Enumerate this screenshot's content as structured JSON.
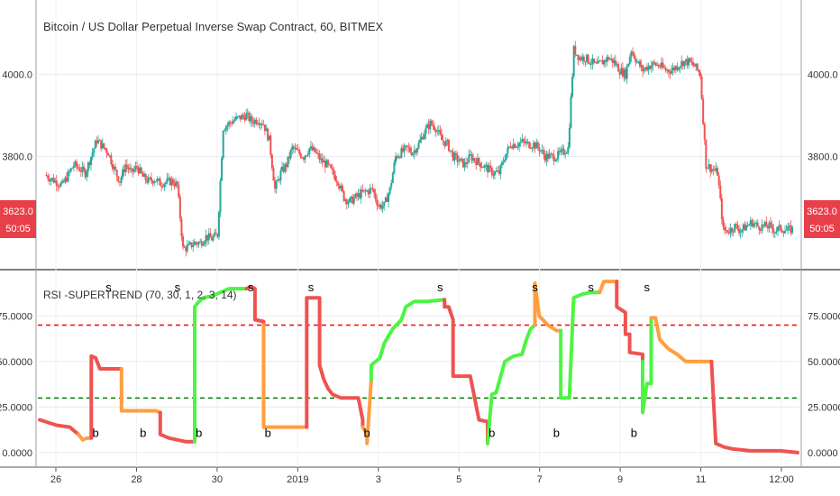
{
  "chart_data": [
    {
      "type": "candlestick",
      "title": "Bitcoin / US Dollar Perpetual Inverse Swap Contract, 60, BITMEX",
      "y_ticks": [
        3800,
        4000
      ],
      "y_tick_labels": [
        "3800.0",
        "4000.0"
      ],
      "ylim": [
        3540,
        4150
      ],
      "last_price": "3623.0",
      "countdown": "50:05",
      "up_color": "#26a69a",
      "down_color": "#ef5350",
      "close_path": [
        [
          0,
          3755
        ],
        [
          3,
          3730
        ],
        [
          5,
          3780
        ],
        [
          7,
          3760
        ],
        [
          9,
          3840
        ],
        [
          11,
          3810
        ],
        [
          12,
          3770
        ],
        [
          13,
          3740
        ],
        [
          14,
          3780
        ],
        [
          15,
          3760
        ],
        [
          16,
          3775
        ],
        [
          17,
          3750
        ],
        [
          18,
          3740
        ],
        [
          19,
          3745
        ],
        [
          20,
          3735
        ],
        [
          22,
          3740
        ],
        [
          23,
          3730
        ],
        [
          24,
          3575
        ],
        [
          25,
          3580
        ],
        [
          26,
          3590
        ],
        [
          27,
          3590
        ],
        [
          28,
          3605
        ],
        [
          29,
          3600
        ],
        [
          30,
          3610
        ],
        [
          31,
          3870
        ],
        [
          32,
          3880
        ],
        [
          33,
          3890
        ],
        [
          34,
          3895
        ],
        [
          35,
          3900
        ],
        [
          36,
          3885
        ],
        [
          37,
          3890
        ],
        [
          38,
          3880
        ],
        [
          39,
          3840
        ],
        [
          40,
          3720
        ],
        [
          41,
          3760
        ],
        [
          42,
          3780
        ],
        [
          43,
          3820
        ],
        [
          44,
          3810
        ],
        [
          45,
          3800
        ],
        [
          46,
          3820
        ],
        [
          47,
          3810
        ],
        [
          48,
          3790
        ],
        [
          49,
          3780
        ],
        [
          50,
          3760
        ],
        [
          51,
          3740
        ],
        [
          52,
          3700
        ],
        [
          53,
          3690
        ],
        [
          54,
          3700
        ],
        [
          55,
          3710
        ],
        [
          56,
          3715
        ],
        [
          57,
          3720
        ],
        [
          58,
          3680
        ],
        [
          59,
          3680
        ],
        [
          60,
          3720
        ],
        [
          61,
          3800
        ],
        [
          62,
          3810
        ],
        [
          63,
          3820
        ],
        [
          64,
          3810
        ],
        [
          65,
          3830
        ],
        [
          66,
          3860
        ],
        [
          67,
          3880
        ],
        [
          68,
          3870
        ],
        [
          69,
          3840
        ],
        [
          70,
          3830
        ],
        [
          71,
          3800
        ],
        [
          72,
          3790
        ],
        [
          73,
          3780
        ],
        [
          74,
          3800
        ],
        [
          75,
          3790
        ],
        [
          76,
          3780
        ],
        [
          77,
          3770
        ],
        [
          78,
          3760
        ],
        [
          79,
          3760
        ],
        [
          80,
          3800
        ],
        [
          81,
          3830
        ],
        [
          82,
          3830
        ],
        [
          83,
          3835
        ],
        [
          84,
          3830
        ],
        [
          85,
          3830
        ],
        [
          86,
          3820
        ],
        [
          87,
          3800
        ],
        [
          88,
          3800
        ],
        [
          89,
          3800
        ],
        [
          90,
          3810
        ],
        [
          91,
          3820
        ],
        [
          92,
          4060
        ],
        [
          93,
          4040
        ],
        [
          94,
          4040
        ],
        [
          95,
          4030
        ],
        [
          96,
          4020
        ],
        [
          97,
          4030
        ],
        [
          98,
          4040
        ],
        [
          99,
          4030
        ],
        [
          100,
          4010
        ],
        [
          101,
          4000
        ],
        [
          102,
          4060
        ],
        [
          103,
          4030
        ],
        [
          104,
          4010
        ],
        [
          105,
          4020
        ],
        [
          106,
          4025
        ],
        [
          107,
          4020
        ],
        [
          108,
          4010
        ],
        [
          109,
          4010
        ],
        [
          110,
          4020
        ],
        [
          111,
          4030
        ],
        [
          112,
          4030
        ],
        [
          113,
          4020
        ],
        [
          114,
          4000
        ],
        [
          115,
          3780
        ],
        [
          116,
          3770
        ],
        [
          117,
          3760
        ],
        [
          118,
          3620
        ],
        [
          119,
          3620
        ],
        [
          120,
          3630
        ],
        [
          121,
          3620
        ],
        [
          122,
          3630
        ],
        [
          123,
          3640
        ],
        [
          124,
          3630
        ],
        [
          125,
          3630
        ],
        [
          126,
          3630
        ],
        [
          127,
          3620
        ],
        [
          128,
          3625
        ],
        [
          129,
          3620
        ],
        [
          130,
          3623
        ]
      ],
      "close_path_x_unit": "hourly bar index"
    },
    {
      "type": "line",
      "title": "RSI -SUPERTREND (70, 30, 1, 2, 3, 14)",
      "y_ticks": [
        0,
        25,
        50,
        75
      ],
      "y_tick_labels": [
        "0.0000",
        "25.0000",
        "50.0000",
        "75.0000"
      ],
      "ylim": [
        -5,
        97
      ],
      "upper_level": 70,
      "lower_level": 30,
      "upper_level_color": "#ff0000",
      "lower_level_color": "#008000",
      "segments": [
        {
          "color": "#ef5350",
          "points": [
            [
              0,
              18
            ],
            [
              4,
              15
            ],
            [
              7,
              14
            ],
            [
              9,
              10
            ]
          ]
        },
        {
          "color": "#ff9e40",
          "points": [
            [
              9,
              10
            ],
            [
              10,
              7
            ],
            [
              11,
              8
            ],
            [
              12,
              8
            ]
          ]
        },
        {
          "color": "#ef5350",
          "points": [
            [
              12,
              8
            ],
            [
              12,
              53
            ],
            [
              13,
              52
            ],
            [
              14,
              46
            ],
            [
              16,
              46
            ],
            [
              17,
              46
            ],
            [
              18,
              46
            ],
            [
              19,
              46
            ]
          ]
        },
        {
          "color": "#ff9e40",
          "points": [
            [
              19,
              46
            ],
            [
              19,
              23
            ],
            [
              22,
              23
            ],
            [
              25,
              23
            ],
            [
              27,
              23
            ],
            [
              28,
              22
            ]
          ]
        },
        {
          "color": "#ef5350",
          "points": [
            [
              28,
              22
            ],
            [
              28,
              10
            ],
            [
              30,
              8
            ],
            [
              32,
              7
            ],
            [
              34,
              6
            ],
            [
              36,
              6
            ]
          ]
        },
        {
          "color": "#4cf542",
          "points": [
            [
              36,
              6
            ],
            [
              36,
              80
            ],
            [
              37,
              83
            ],
            [
              38,
              85
            ],
            [
              40,
              86
            ],
            [
              42,
              88
            ],
            [
              44,
              90
            ],
            [
              48,
              90
            ]
          ]
        },
        {
          "color": "#ef5350",
          "points": [
            [
              48,
              90
            ],
            [
              49,
              91
            ],
            [
              50,
              90
            ],
            [
              50,
              73
            ],
            [
              52,
              72
            ],
            [
              52,
              70
            ]
          ]
        },
        {
          "color": "#ff9e40",
          "points": [
            [
              52,
              70
            ],
            [
              52,
              14
            ],
            [
              55,
              14
            ],
            [
              58,
              14
            ],
            [
              62,
              14
            ]
          ]
        },
        {
          "color": "#ef5350",
          "points": [
            [
              62,
              14
            ],
            [
              62,
              85
            ],
            [
              64,
              85
            ],
            [
              65,
              85
            ],
            [
              65,
              48
            ],
            [
              66,
              40
            ],
            [
              67,
              35
            ],
            [
              68,
              32
            ],
            [
              70,
              30
            ],
            [
              72,
              30
            ],
            [
              74,
              30
            ],
            [
              75,
              18
            ],
            [
              75,
              14
            ]
          ]
        },
        {
          "color": "#ff9e40",
          "points": [
            [
              75,
              14
            ],
            [
              76,
              10
            ],
            [
              76,
              5
            ],
            [
              77,
              40
            ]
          ]
        },
        {
          "color": "#4cf542",
          "points": [
            [
              77,
              40
            ],
            [
              77,
              48
            ],
            [
              79,
              52
            ],
            [
              80,
              60
            ],
            [
              82,
              68
            ],
            [
              84,
              73
            ],
            [
              85,
              80
            ],
            [
              87,
              83
            ],
            [
              90,
              83
            ],
            [
              94,
              84
            ]
          ]
        },
        {
          "color": "#ef5350",
          "points": [
            [
              94,
              84
            ],
            [
              94,
              80
            ],
            [
              95,
              80
            ],
            [
              96,
              73
            ],
            [
              96,
              42
            ],
            [
              98,
              42
            ],
            [
              100,
              42
            ],
            [
              101,
              30
            ],
            [
              102,
              18
            ],
            [
              104,
              17
            ],
            [
              104,
              5
            ]
          ]
        },
        {
          "color": "#4cf542",
          "points": [
            [
              104,
              5
            ],
            [
              105,
              32
            ],
            [
              106,
              33
            ],
            [
              108,
              50
            ],
            [
              110,
              53
            ],
            [
              112,
              54
            ],
            [
              113,
              62
            ],
            [
              114,
              68
            ],
            [
              115,
              70
            ]
          ]
        },
        {
          "color": "#ff9e40",
          "points": [
            [
              115,
              70
            ],
            [
              115,
              93
            ],
            [
              116,
              75
            ],
            [
              118,
              70
            ],
            [
              120,
              67
            ],
            [
              121,
              67
            ]
          ]
        },
        {
          "color": "#4cf542",
          "points": [
            [
              121,
              67
            ],
            [
              121,
              30
            ],
            [
              123,
              30
            ],
            [
              124,
              85
            ],
            [
              126,
              87
            ],
            [
              128,
              88
            ],
            [
              130,
              88
            ]
          ]
        },
        {
          "color": "#ff9e40",
          "points": [
            [
              130,
              88
            ],
            [
              131,
              94
            ],
            [
              134,
              94
            ]
          ]
        },
        {
          "color": "#ef5350",
          "points": [
            [
              134,
              94
            ],
            [
              134,
              80
            ],
            [
              136,
              77
            ],
            [
              136,
              65
            ],
            [
              137,
              65
            ],
            [
              137,
              55
            ],
            [
              140,
              54
            ],
            [
              140,
              50
            ]
          ]
        },
        {
          "color": "#4cf542",
          "points": [
            [
              140,
              50
            ],
            [
              140,
              22
            ],
            [
              141,
              38
            ],
            [
              142,
              38
            ],
            [
              142,
              74
            ]
          ]
        },
        {
          "color": "#ff9e40",
          "points": [
            [
              142,
              74
            ],
            [
              143,
              74
            ],
            [
              144,
              62
            ],
            [
              146,
              57
            ],
            [
              148,
              54
            ],
            [
              150,
              50
            ],
            [
              152,
              50
            ],
            [
              156,
              50
            ]
          ]
        },
        {
          "color": "#ef5350",
          "points": [
            [
              156,
              50
            ],
            [
              157,
              5
            ],
            [
              159,
              3
            ],
            [
              161,
              2
            ],
            [
              165,
              1
            ],
            [
              172,
              1
            ],
            [
              176,
              0
            ]
          ]
        }
      ],
      "segments_x_unit": "bar index"
    }
  ],
  "signals": [
    {
      "text": "b",
      "at": [
        13,
        11
      ]
    },
    {
      "text": "s",
      "at": [
        16,
        91
      ]
    },
    {
      "text": "b",
      "at": [
        24,
        11
      ]
    },
    {
      "text": "s",
      "at": [
        32,
        91
      ]
    },
    {
      "text": "b",
      "at": [
        37,
        11
      ]
    },
    {
      "text": "s",
      "at": [
        49,
        91
      ]
    },
    {
      "text": "b",
      "at": [
        53,
        11
      ]
    },
    {
      "text": "s",
      "at": [
        63,
        91
      ]
    },
    {
      "text": "b",
      "at": [
        76,
        11
      ]
    },
    {
      "text": "s",
      "at": [
        93,
        91
      ]
    },
    {
      "text": "b",
      "at": [
        105,
        11
      ]
    },
    {
      "text": "s",
      "at": [
        115,
        91
      ]
    },
    {
      "text": "b",
      "at": [
        120,
        11
      ]
    },
    {
      "text": "s",
      "at": [
        128,
        91
      ]
    },
    {
      "text": "b",
      "at": [
        138,
        11
      ]
    },
    {
      "text": "s",
      "at": [
        141,
        91
      ]
    }
  ],
  "x_ticks": [
    "26",
    "28",
    "30",
    "2019",
    "3",
    "5",
    "7",
    "9",
    "11",
    "12:00"
  ]
}
